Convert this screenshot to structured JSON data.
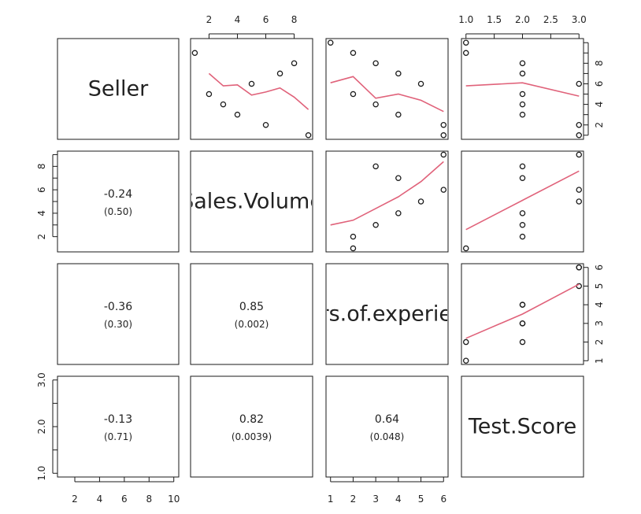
{
  "chart_data": {
    "type": "scatter-matrix",
    "variables": [
      "Seller",
      "Sales.Volume",
      "Years.of.experience",
      "Test.Score"
    ],
    "diag_labels": [
      "Seller",
      "Sales.Volume",
      "Years.of.experience",
      "Test.Score"
    ],
    "observations": {
      "Seller": [
        1,
        2,
        3,
        4,
        5,
        6,
        7,
        8,
        9,
        10
      ],
      "Sales.Volume": [
        9,
        6,
        4,
        3,
        2,
        5,
        7,
        8,
        1,
        null
      ],
      "Years.of.experience": [
        6,
        6,
        4,
        3,
        2,
        5,
        4,
        3,
        2,
        1
      ],
      "Test.Score": [
        3,
        3,
        2,
        2,
        2,
        3,
        2,
        2,
        1,
        1
      ]
    },
    "smoothers": {
      "Seller|Sales.Volume": {
        "x": [
          2,
          3,
          4,
          5,
          6,
          7,
          8,
          9
        ],
        "y": [
          7,
          5.8,
          5.9,
          4.9,
          5.2,
          5.6,
          4.7,
          3.5
        ]
      },
      "Seller|Years.of.experience": {
        "x": [
          1,
          2,
          3,
          4,
          5,
          6
        ],
        "y": [
          6.1,
          6.7,
          4.6,
          5,
          4.4,
          3.3
        ]
      },
      "Seller|Test.Score": {
        "x": [
          1,
          2,
          3
        ],
        "y": [
          5.8,
          6.1,
          4.8
        ]
      },
      "Sales.Volume|Years.of.experience": {
        "x": [
          1,
          2,
          3,
          4,
          5,
          6
        ],
        "y": [
          3,
          3.4,
          4.4,
          5.4,
          6.7,
          8.4
        ]
      },
      "Sales.Volume|Test.Score": {
        "x": [
          1,
          2,
          3
        ],
        "y": [
          2.6,
          5.1,
          7.6
        ]
      },
      "Years.of.experience|Test.Score": {
        "x": [
          1,
          2,
          3
        ],
        "y": [
          2.2,
          3.5,
          5.1
        ]
      }
    },
    "correlations": [
      {
        "row": "Sales.Volume",
        "col": "Seller",
        "r": "-0.24",
        "p": "(0.50)"
      },
      {
        "row": "Years.of.experience",
        "col": "Seller",
        "r": "-0.36",
        "p": "(0.30)"
      },
      {
        "row": "Years.of.experience",
        "col": "Sales.Volume",
        "r": "0.85",
        "p": "(0.002)"
      },
      {
        "row": "Test.Score",
        "col": "Seller",
        "r": "-0.13",
        "p": "(0.71)"
      },
      {
        "row": "Test.Score",
        "col": "Sales.Volume",
        "r": "0.82",
        "p": "(0.0039)"
      },
      {
        "row": "Test.Score",
        "col": "Years.of.experience",
        "r": "0.64",
        "p": "(0.048)"
      }
    ],
    "axes": {
      "top": [
        {
          "col": "Sales.Volume",
          "ticks": [
            2,
            4,
            6,
            8
          ],
          "labels": [
            "2",
            "4",
            "6",
            "8"
          ]
        },
        {
          "col": "Test.Score",
          "ticks": [
            1,
            1.5,
            2,
            2.5,
            3
          ],
          "labels": [
            "1.0",
            "1.5",
            "2.0",
            "2.5",
            "3.0"
          ]
        }
      ],
      "bottom": [
        {
          "col": "Seller",
          "ticks": [
            2,
            4,
            6,
            8,
            10
          ],
          "labels": [
            "2",
            "4",
            "6",
            "8",
            "10"
          ]
        },
        {
          "col": "Years.of.experience",
          "ticks": [
            1,
            2,
            3,
            4,
            5,
            6
          ],
          "labels": [
            "1",
            "2",
            "3",
            "4",
            "5",
            "6"
          ]
        }
      ],
      "left": [
        {
          "row": "Sales.Volume",
          "ticks": [
            2,
            3,
            4,
            5,
            6,
            7,
            8,
            9
          ],
          "labels": [
            "2",
            "",
            "4",
            "",
            "6",
            "",
            "8",
            ""
          ]
        },
        {
          "row": "Test.Score",
          "ticks": [
            1,
            1.5,
            2,
            2.5,
            3
          ],
          "labels": [
            "1.0",
            "",
            "2.0",
            "",
            "3.0"
          ]
        }
      ],
      "right": [
        {
          "row": "Seller",
          "ticks": [
            1,
            2,
            3,
            4,
            5,
            6,
            7,
            8,
            9,
            10
          ],
          "labels": [
            "",
            "2",
            "",
            "4",
            "",
            "6",
            "",
            "8",
            "",
            ""
          ]
        },
        {
          "row": "Years.of.experience",
          "ticks": [
            1,
            2,
            3,
            4,
            5,
            6
          ],
          "labels": [
            "1",
            "2",
            "3",
            "4",
            "5",
            "6"
          ]
        }
      ]
    },
    "colors": {
      "points": "#1a1a1a",
      "smoother": "#e0627a",
      "frame": "#1a1a1a"
    }
  }
}
